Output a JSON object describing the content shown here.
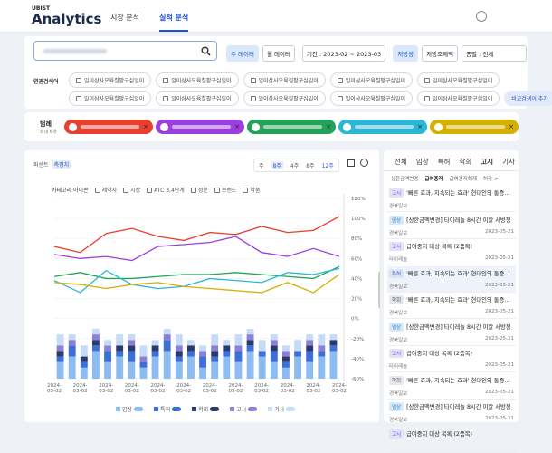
{
  "header": {
    "brand_small": "UBIST",
    "brand": "Analytics",
    "tabs": [
      "시장 분석",
      "실적 분석"
    ]
  },
  "filters": {
    "data_buttons": [
      "주 데이터",
      "월 데이터"
    ],
    "period": "기간 : 2023-02 ~ 2023-03",
    "measure_buttons": [
      "처방량",
      "처방조제액"
    ],
    "type_select": "종별 : 전체"
  },
  "related": {
    "label": "연관검색어",
    "keywords": [
      "일이삼사오육칠팔구십일이",
      "일이삼사오육칠팔구십일이",
      "일이삼사오육칠팔구십일이",
      "일이삼사오육칠팔구십일이",
      "일이삼사오육칠팔구십일이",
      "일이삼사오육칠팔구십일이",
      "일이삼사오육칠팔구십일이",
      "일이삼사오육칠팔구십일이",
      "일이삼사오육칠팔구십일이",
      "일이삼사오육칠팔구십일이"
    ],
    "add": "비교검색어 추가"
  },
  "legend": {
    "label": "범례",
    "note": "최대 6개"
  },
  "chart_panel": {
    "modes": [
      "퍼센트",
      "측정치"
    ],
    "periods": [
      "주",
      "8주",
      "4주",
      "8주",
      "12주"
    ],
    "category_label": "카테고리 아이콘",
    "categories": [
      "제약사",
      "시장",
      "ATC 3,4단계",
      "성분",
      "브랜드",
      "약품"
    ]
  },
  "chart_data": [
    {
      "type": "line",
      "categories": [
        "2024-03-02",
        "2024-03-02",
        "2024-03-02",
        "2024-03-02",
        "2024-03-02",
        "2024-03-02",
        "2024-03-02",
        "2024-03-02",
        "2024-03-02",
        "2024-03-02",
        "2024-03-02",
        "2024-03-02"
      ],
      "series": [
        {
          "color": "#e8402f",
          "values": [
            72,
            66,
            85,
            90,
            82,
            78,
            86,
            84,
            92,
            86,
            88,
            102
          ]
        },
        {
          "color": "#9b3fe0",
          "values": [
            64,
            60,
            62,
            58,
            72,
            74,
            76,
            82,
            66,
            62,
            70,
            62
          ]
        },
        {
          "color": "#22a35a",
          "values": [
            42,
            46,
            40,
            40,
            42,
            44,
            44,
            46,
            44,
            42,
            40,
            52
          ]
        },
        {
          "color": "#2bb6d6",
          "values": [
            38,
            26,
            48,
            34,
            30,
            32,
            40,
            38,
            36,
            46,
            44,
            50
          ]
        },
        {
          "color": "#d4b000",
          "values": [
            36,
            34,
            30,
            34,
            36,
            32,
            30,
            28,
            26,
            36,
            26,
            44
          ]
        }
      ],
      "ylim": [
        -60,
        120
      ],
      "yticks": [
        {
          "value": 120,
          "label": "120%"
        },
        {
          "value": 100,
          "label": "100%"
        },
        {
          "value": 80,
          "label": "80%"
        },
        {
          "value": 60,
          "label": "60%"
        },
        {
          "value": 40,
          "label": "40%"
        },
        {
          "value": 20,
          "label": "20%"
        },
        {
          "value": 0,
          "label": "0%"
        },
        {
          "value": -20,
          "label": "-20%"
        },
        {
          "value": -40,
          "label": "-40%"
        },
        {
          "value": -60,
          "label": "-60%"
        }
      ],
      "grid": true
    },
    {
      "type": "stacked-bar",
      "categories": [
        null,
        null,
        null,
        null,
        null,
        null,
        null,
        null,
        null,
        null,
        null,
        null,
        null,
        null,
        null,
        null,
        null,
        null,
        null,
        null,
        null,
        null,
        null,
        null
      ],
      "series": [
        {
          "name": "임상",
          "color": "#8dbcf2",
          "values": [
            3,
            4,
            2,
            5,
            3,
            4,
            3,
            2,
            4,
            5,
            3,
            4,
            2,
            3,
            4,
            3,
            5,
            4,
            3,
            2,
            4,
            3,
            4,
            5
          ]
        },
        {
          "name": "특허",
          "color": "#3d6fd9",
          "values": [
            1,
            2,
            1,
            1,
            2,
            1,
            2,
            1,
            1,
            2,
            1,
            1,
            2,
            1,
            1,
            2,
            1,
            1,
            2,
            1,
            1,
            2,
            1,
            1
          ]
        },
        {
          "name": "학회",
          "color": "#2b3a6b",
          "values": [
            1,
            0,
            1,
            1,
            0,
            1,
            1,
            0,
            1,
            0,
            1,
            1,
            0,
            1,
            1,
            0,
            1,
            0,
            1,
            1,
            0,
            1,
            0,
            1
          ]
        },
        {
          "name": "고시",
          "color": "#8c7fd6",
          "values": [
            1,
            1,
            0,
            1,
            1,
            0,
            1,
            1,
            0,
            1,
            1,
            0,
            1,
            1,
            0,
            1,
            1,
            0,
            1,
            1,
            0,
            1,
            1,
            0
          ]
        },
        {
          "name": "기사",
          "color": "#c6dcf6",
          "values": [
            2,
            1,
            2,
            1,
            1,
            2,
            1,
            2,
            1,
            1,
            2,
            1,
            1,
            2,
            1,
            2,
            1,
            2,
            1,
            1,
            2,
            1,
            2,
            1
          ]
        }
      ]
    }
  ],
  "news": {
    "tabs": [
      "전체",
      "임상",
      "특허",
      "학회",
      "고시",
      "기사"
    ],
    "subtabs": [
      "상한금액변경",
      "급여중지",
      "급여중지해제",
      "허가 >"
    ],
    "items": [
      {
        "tag": "고시",
        "title": "'빠른 효과, 지속되는 효과' 현대인의 통증과 싸우는",
        "source": "경북일보"
      },
      {
        "tag": "임상",
        "title": "[상한금액변경] 타이레놀 8시간 이알 서방정",
        "source": "경북일보",
        "date": "2023-05-21"
      },
      {
        "tag": "고시",
        "title": "급여중지 대상 목록 (2품목)",
        "source": "타이레놀",
        "date": "2023-05-21"
      },
      {
        "tag": "특허",
        "title": "'빠른 효과, 지속되는 효과' 현대인의 통증과 싸우는",
        "source": "경북일보",
        "date": "2023-05-21"
      },
      {
        "tag": "학회",
        "title": "'빠른 효과, 지속되는 효과' 현대인의 통증과 싸우는",
        "source": "경북일보",
        "date": "2023-05-21"
      },
      {
        "tag": "임상",
        "title": "[상한금액변경] 타이레놀 8시간 이알 서방정",
        "source": "경북일보",
        "date": "2023-05-21"
      },
      {
        "tag": "고시",
        "title": "급여중지 대상 목록 (2품목)",
        "source": "타이레놀",
        "date": "2023-05-21"
      },
      {
        "tag": "학회",
        "title": "'빠른 효과, 지속되는 효과' 현대인의 통증과 싸우는",
        "source": "경북일보",
        "date": "2023-05-21"
      },
      {
        "tag": "임상",
        "title": "[상한금액변경] 타이레놀 8시간 이알 서방정",
        "source": "경북일보",
        "date": "2023-05-21"
      },
      {
        "tag": "고시",
        "title": "급여중지 대상 목록 (2품목)"
      }
    ]
  }
}
